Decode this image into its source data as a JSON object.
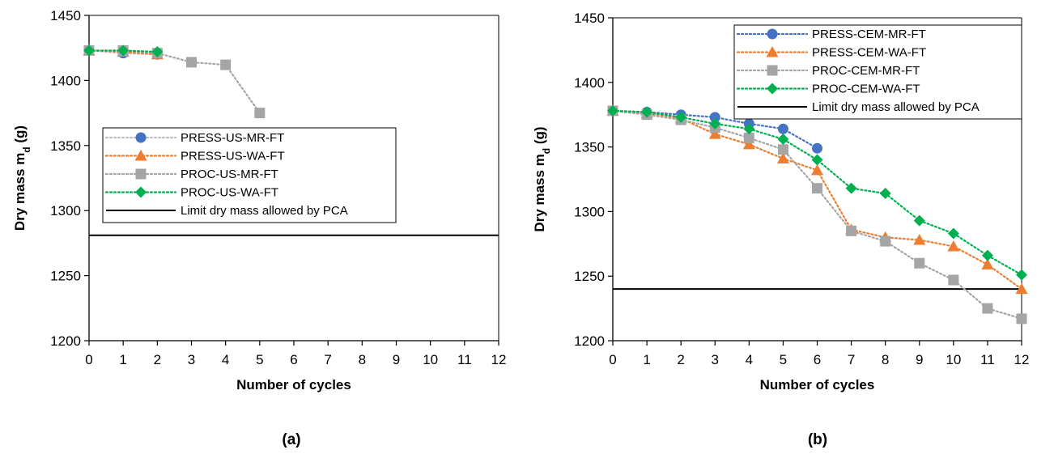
{
  "chart_data": [
    {
      "type": "line",
      "panel_label": "(a)",
      "xlabel": "Number of cycles",
      "ylabel_main": "Dry mass m",
      "ylabel_sub": "d",
      "ylabel_unit": " (g)",
      "xlim": [
        0,
        12
      ],
      "ylim": [
        1200,
        1450
      ],
      "xticks": [
        0,
        1,
        2,
        3,
        4,
        5,
        6,
        7,
        8,
        9,
        10,
        11,
        12
      ],
      "yticks": [
        1200,
        1250,
        1300,
        1350,
        1400,
        1450
      ],
      "grid": false,
      "legend_position": "center-left",
      "series": [
        {
          "name": "PRESS-US-MR-FT",
          "marker": "circle",
          "color": "#4472C4",
          "line_color": "#BFBFBF",
          "x": [
            0,
            1,
            2
          ],
          "y": [
            1423,
            1421,
            1420
          ]
        },
        {
          "name": "PRESS-US-WA-FT",
          "marker": "triangle",
          "color": "#ED7D31",
          "line_color": "#ED7D31",
          "x": [
            0,
            1,
            2
          ],
          "y": [
            1423,
            1422,
            1420
          ]
        },
        {
          "name": "PROC-US-MR-FT",
          "marker": "square",
          "color": "#A5A5A5",
          "line_color": "#A5A5A5",
          "x": [
            0,
            1,
            2,
            3,
            4,
            5
          ],
          "y": [
            1423,
            1423,
            1421,
            1414,
            1412,
            1375
          ]
        },
        {
          "name": "PROC-US-WA-FT",
          "marker": "diamond",
          "color": "#00B050",
          "line_color": "#00B050",
          "x": [
            0,
            1,
            2
          ],
          "y": [
            1423,
            1423,
            1422
          ]
        }
      ],
      "limit_line": {
        "name": "Limit dry mass allowed by PCA",
        "y": 1281,
        "color": "#000000"
      }
    },
    {
      "type": "line",
      "panel_label": "(b)",
      "xlabel": "Number of cycles",
      "ylabel_main": "Dry mass m",
      "ylabel_sub": "d",
      "ylabel_unit": " (g)",
      "xlim": [
        0,
        12
      ],
      "ylim": [
        1200,
        1450
      ],
      "xticks": [
        0,
        1,
        2,
        3,
        4,
        5,
        6,
        7,
        8,
        9,
        10,
        11,
        12
      ],
      "yticks": [
        1200,
        1250,
        1300,
        1350,
        1400,
        1450
      ],
      "grid": false,
      "legend_position": "top-right",
      "series": [
        {
          "name": "PRESS-CEM-MR-FT",
          "marker": "circle",
          "color": "#4472C4",
          "line_color": "#4472C4",
          "x": [
            0,
            1,
            2,
            3,
            4,
            5,
            6
          ],
          "y": [
            1378,
            1377,
            1375,
            1373,
            1368,
            1364,
            1349
          ]
        },
        {
          "name": "PRESS-CEM-WA-FT",
          "marker": "triangle",
          "color": "#ED7D31",
          "line_color": "#ED7D31",
          "x": [
            0,
            1,
            2,
            3,
            4,
            5,
            6,
            7,
            8,
            9,
            10,
            11,
            12
          ],
          "y": [
            1378,
            1376,
            1372,
            1360,
            1352,
            1341,
            1332,
            1286,
            1280,
            1278,
            1273,
            1259,
            1240
          ]
        },
        {
          "name": "PROC-CEM-MR-FT",
          "marker": "square",
          "color": "#A5A5A5",
          "line_color": "#A5A5A5",
          "x": [
            0,
            1,
            2,
            3,
            4,
            5,
            6,
            7,
            8,
            9,
            10,
            11,
            12
          ],
          "y": [
            1378,
            1375,
            1371,
            1365,
            1357,
            1348,
            1318,
            1285,
            1277,
            1260,
            1247,
            1225,
            1217
          ]
        },
        {
          "name": "PROC-CEM-WA-FT",
          "marker": "diamond",
          "color": "#00B050",
          "line_color": "#00B050",
          "x": [
            0,
            1,
            2,
            3,
            4,
            5,
            6,
            7,
            8,
            9,
            10,
            11,
            12
          ],
          "y": [
            1378,
            1377,
            1373,
            1368,
            1364,
            1356,
            1340,
            1318,
            1314,
            1293,
            1283,
            1266,
            1251
          ]
        }
      ],
      "limit_line": {
        "name": "Limit dry mass allowed by PCA",
        "y": 1240,
        "color": "#000000"
      }
    }
  ]
}
